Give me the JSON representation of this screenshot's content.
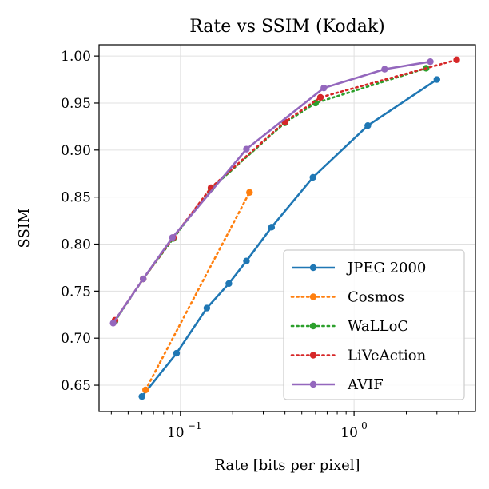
{
  "chart_data": {
    "type": "line",
    "title": "Rate vs SSIM (Kodak)",
    "xlabel": "Rate [bits per pixel]",
    "ylabel": "SSIM",
    "xscale": "log",
    "xlim": [
      0.034,
      5.0
    ],
    "ylim": [
      0.622,
      1.012
    ],
    "x_major_ticks": [
      0.1,
      1.0
    ],
    "x_tick_labels": [
      "10",
      "10"
    ],
    "x_tick_exponents": [
      "−1",
      "0"
    ],
    "y_ticks": [
      0.65,
      0.7,
      0.75,
      0.8,
      0.85,
      0.9,
      0.95,
      1.0
    ],
    "y_tick_labels": [
      "0.65",
      "0.70",
      "0.75",
      "0.80",
      "0.85",
      "0.90",
      "0.95",
      "1.00"
    ],
    "grid": true,
    "legend_position": "lower-right",
    "series": [
      {
        "name": "JPEG 2000",
        "color": "#1f77b4",
        "linestyle": "solid",
        "x": [
          0.06,
          0.095,
          0.142,
          0.19,
          0.24,
          0.335,
          0.58,
          1.2,
          3.0
        ],
        "y": [
          0.638,
          0.684,
          0.732,
          0.758,
          0.782,
          0.818,
          0.871,
          0.926,
          0.975
        ]
      },
      {
        "name": "Cosmos",
        "color": "#ff7f0e",
        "linestyle": "dotted",
        "x": [
          0.063,
          0.25
        ],
        "y": [
          0.645,
          0.855
        ]
      },
      {
        "name": "WaLLoC",
        "color": "#2ca02c",
        "linestyle": "dotted",
        "x": [
          0.042,
          0.061,
          0.091,
          0.15,
          0.4,
          0.6,
          2.6
        ],
        "y": [
          0.718,
          0.763,
          0.806,
          0.859,
          0.929,
          0.95,
          0.987
        ]
      },
      {
        "name": "LiVeAction",
        "color": "#d62728",
        "linestyle": "dotted",
        "x": [
          0.042,
          0.061,
          0.091,
          0.15,
          0.4,
          0.64,
          3.9
        ],
        "y": [
          0.719,
          0.763,
          0.807,
          0.86,
          0.93,
          0.956,
          0.996
        ]
      },
      {
        "name": "AVIF",
        "color": "#9467bd",
        "linestyle": "solid",
        "x": [
          0.041,
          0.061,
          0.09,
          0.24,
          0.67,
          1.5,
          2.75
        ],
        "y": [
          0.716,
          0.763,
          0.807,
          0.901,
          0.966,
          0.986,
          0.994
        ]
      }
    ]
  }
}
